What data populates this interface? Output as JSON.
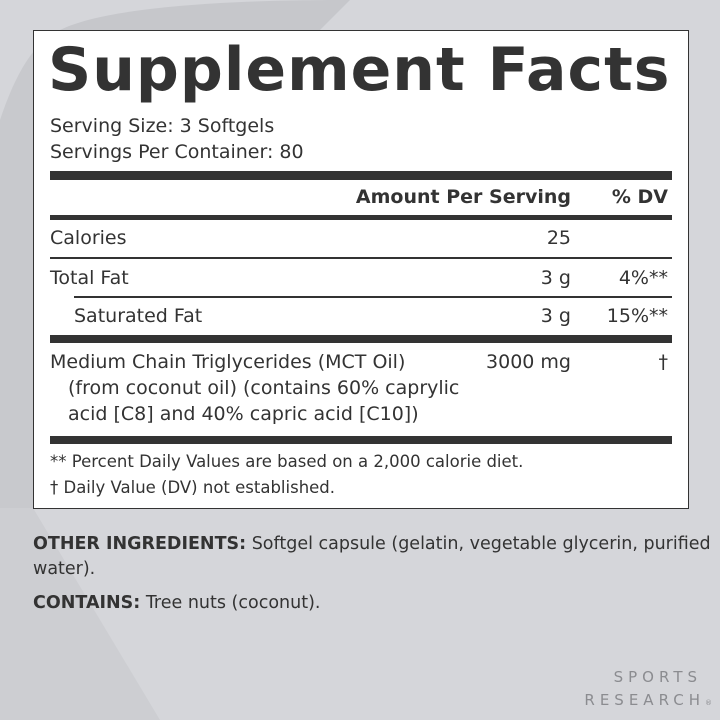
{
  "title": "Supplement Facts",
  "serving_size": "Serving Size: 3 Softgels",
  "servings_per_container": "Servings Per Container: 80",
  "header": {
    "amount": "Amount Per Serving",
    "dv": "% DV"
  },
  "rows": [
    {
      "name": "Calories",
      "amount": "25",
      "dv": ""
    },
    {
      "name": "Total Fat",
      "amount": "3 g",
      "dv": "4%**"
    },
    {
      "name": "Saturated Fat",
      "amount": "3 g",
      "dv": "15%**"
    },
    {
      "name": "Medium Chain Triglycerides (MCT Oil)",
      "sub1": "(from coconut oil) (contains 60% caprylic",
      "sub2": "acid [C8] and 40% capric acid [C10])",
      "amount": "3000 mg",
      "dv": "†"
    }
  ],
  "footnotes": [
    "** Percent Daily Values are based on a 2,000 calorie diet.",
    "†  Daily Value (DV) not established."
  ],
  "other_ingredients": {
    "label": "OTHER INGREDIENTS:",
    "text": " Softgel capsule (gelatin, vegetable glycerin, purified water)."
  },
  "contains": {
    "label": "CONTAINS:",
    "text": " Tree nuts (coconut)."
  },
  "brand": {
    "line1": "SPORTS",
    "line2": "RESEARCH",
    "mark": "®"
  }
}
